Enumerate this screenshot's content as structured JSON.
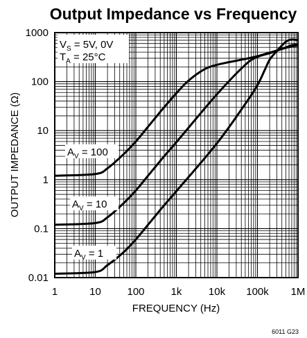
{
  "chart_data": {
    "type": "line",
    "title": "Output Impedance vs Frequency",
    "xlabel": "FREQUENCY (Hz)",
    "ylabel": "OUTPUT IMPEDANCE (Ω)",
    "x_scale": "log",
    "y_scale": "log",
    "xlim": [
      1,
      1000000
    ],
    "ylim": [
      0.01,
      1000
    ],
    "grid": true,
    "x_tick_labels": [
      "1",
      "10",
      "100",
      "1k",
      "10k",
      "100k",
      "1M"
    ],
    "y_tick_labels": [
      "1000",
      "100",
      "10",
      "1",
      "0.1",
      "0.01"
    ],
    "conditions": {
      "vs_main": "V",
      "vs_sub": "S",
      "vs_value": " = 5V, 0V",
      "ta_main": "T",
      "ta_sub": "A",
      "ta_value": " = 25°C"
    },
    "series": [
      {
        "label_main": "A",
        "label_sub": "V",
        "label_value": " = 100",
        "x": [
          1,
          10,
          20,
          50,
          100,
          200,
          500,
          1000,
          2000,
          5000,
          10000,
          20000,
          50000,
          100000,
          200000,
          300000,
          500000,
          700000,
          1000000
        ],
        "y": [
          1.2,
          1.3,
          1.7,
          3.3,
          6,
          12,
          30,
          58,
          105,
          180,
          220,
          250,
          290,
          330,
          390,
          430,
          490,
          520,
          550
        ]
      },
      {
        "label_main": "A",
        "label_sub": "V",
        "label_value": " = 10",
        "x": [
          1,
          10,
          20,
          50,
          100,
          200,
          500,
          1000,
          10000,
          50000,
          100000,
          200000,
          300000,
          500000,
          700000,
          1000000
        ],
        "y": [
          0.12,
          0.13,
          0.17,
          0.33,
          0.6,
          1.2,
          3,
          5.8,
          55,
          220,
          320,
          380,
          430,
          500,
          550,
          570
        ]
      },
      {
        "label_main": "A",
        "label_sub": "V",
        "label_value": " = 1",
        "x": [
          1,
          10,
          20,
          50,
          100,
          200,
          500,
          1000,
          10000,
          50000,
          100000,
          150000,
          200000,
          300000,
          500000,
          700000,
          1000000
        ],
        "y": [
          0.012,
          0.013,
          0.018,
          0.033,
          0.06,
          0.12,
          0.3,
          0.58,
          5.5,
          35,
          85,
          170,
          280,
          420,
          650,
          720,
          700
        ]
      }
    ],
    "figure_code": "6011 G23"
  }
}
